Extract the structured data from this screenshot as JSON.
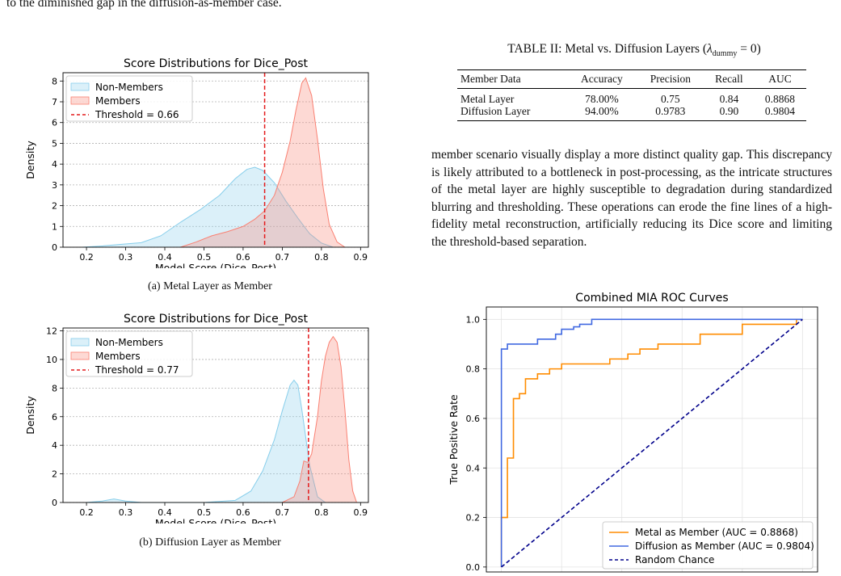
{
  "top_text": "to the diminished gap in the diffusion-as-member case.",
  "figure_a": {
    "caption": "(a) Metal Layer as Member",
    "chart": {
      "type": "area",
      "title": "Score Distributions for Dice_Post",
      "xlabel": "Model Score (Dice_Post)",
      "ylabel": "Density",
      "xlim": [
        0.14,
        0.92
      ],
      "ylim": [
        0,
        8.4
      ],
      "xticks": [
        "0.2",
        "0.3",
        "0.4",
        "0.5",
        "0.6",
        "0.7",
        "0.8",
        "0.9"
      ],
      "yticks": [
        "0",
        "1",
        "2",
        "3",
        "4",
        "5",
        "6",
        "7",
        "8"
      ],
      "grid": "y",
      "legend_position": "top-left",
      "threshold": 0.655,
      "series": [
        {
          "name": "Non-Members",
          "color": "#87ceeb",
          "x": [
            0.19,
            0.24,
            0.29,
            0.34,
            0.39,
            0.44,
            0.49,
            0.54,
            0.58,
            0.61,
            0.63,
            0.65,
            0.68,
            0.71,
            0.74,
            0.77,
            0.8,
            0.83
          ],
          "y": [
            0,
            0.06,
            0.14,
            0.22,
            0.55,
            1.2,
            1.8,
            2.5,
            3.3,
            3.75,
            3.85,
            3.7,
            3.1,
            2.2,
            1.4,
            0.65,
            0.2,
            0
          ]
        },
        {
          "name": "Members",
          "color": "#fa8072",
          "x": [
            0.44,
            0.48,
            0.52,
            0.56,
            0.6,
            0.63,
            0.655,
            0.68,
            0.7,
            0.72,
            0.735,
            0.75,
            0.76,
            0.775,
            0.79,
            0.805,
            0.82,
            0.84,
            0.86
          ],
          "y": [
            0,
            0.25,
            0.55,
            0.75,
            1.0,
            1.35,
            1.75,
            2.5,
            3.6,
            5.1,
            6.6,
            7.9,
            8.15,
            7.3,
            5.2,
            2.8,
            1.1,
            0.25,
            0
          ]
        }
      ],
      "threshold_label": "Threshold = 0.66"
    }
  },
  "figure_b": {
    "caption": "(b) Diffusion Layer as Member",
    "chart": {
      "type": "area",
      "title": "Score Distributions for Dice_Post",
      "xlabel": "Model Score (Dice_Post)",
      "ylabel": "Density",
      "xlim": [
        0.14,
        0.92
      ],
      "ylim": [
        0,
        12.2
      ],
      "xticks": [
        "0.2",
        "0.3",
        "0.4",
        "0.5",
        "0.6",
        "0.7",
        "0.8",
        "0.9"
      ],
      "yticks": [
        "0",
        "2",
        "4",
        "6",
        "8",
        "10",
        "12"
      ],
      "grid": "y",
      "legend_position": "top-left",
      "threshold": 0.767,
      "series": [
        {
          "name": "Non-Members",
          "color": "#87ceeb",
          "x": [
            0.2,
            0.24,
            0.27,
            0.3,
            0.34,
            0.4,
            0.5,
            0.58,
            0.62,
            0.65,
            0.68,
            0.7,
            0.72,
            0.73,
            0.74,
            0.75,
            0.77,
            0.79,
            0.81
          ],
          "y": [
            0,
            0.1,
            0.25,
            0.1,
            0,
            0,
            0,
            0.15,
            0.8,
            2.2,
            4.4,
            6.4,
            8.2,
            8.55,
            8.2,
            6.5,
            2.6,
            0.4,
            0
          ]
        },
        {
          "name": "Members",
          "color": "#fa8072",
          "x": [
            0.7,
            0.73,
            0.745,
            0.755,
            0.765,
            0.775,
            0.79,
            0.8,
            0.81,
            0.82,
            0.83,
            0.84,
            0.85,
            0.86,
            0.87,
            0.88,
            0.89
          ],
          "y": [
            0,
            0.4,
            1.5,
            2.9,
            2.8,
            3.4,
            6.0,
            8.5,
            10.2,
            11.2,
            11.6,
            11.2,
            9.5,
            6.5,
            3.0,
            0.8,
            0
          ]
        }
      ],
      "threshold_label": "Threshold = 0.77"
    }
  },
  "table": {
    "caption_prefix": "TABLE II: Metal vs. Diffusion Layers (",
    "caption_lambda": "λ",
    "caption_sub": "dummy",
    "caption_suffix": " = 0)",
    "headers": [
      "Member Data",
      "Accuracy",
      "Precision",
      "Recall",
      "AUC"
    ],
    "rows": [
      [
        "Metal Layer",
        "78.00%",
        "0.75",
        "0.84",
        "0.8868"
      ],
      [
        "Diffusion Layer",
        "94.00%",
        "0.9783",
        "0.90",
        "0.9804"
      ]
    ]
  },
  "paragraph": "member scenario visually display a more distinct quality gap. This discrepancy is likely attributed to a bottleneck in post-processing, as the intricate structures of the metal layer are highly susceptible to degradation during standardized blurring and thresholding. These operations can erode the fine lines of a high-fidelity metal reconstruction, artificially reducing its Dice score and limiting the threshold-based separation.",
  "roc": {
    "chart": {
      "type": "line",
      "title": "Combined MIA ROC Curves",
      "xlabel": "",
      "ylabel": "True Positive Rate",
      "xlim": [
        -0.05,
        1.05
      ],
      "ylim": [
        -0.02,
        1.05
      ],
      "yticks": [
        "0.0",
        "0.2",
        "0.4",
        "0.6",
        "0.8",
        "1.0"
      ],
      "grid": "both",
      "legend_position": "bottom-right",
      "series": [
        {
          "name": "Metal as Member (AUC = 0.8868)",
          "color": "#ff8c00",
          "style": "step",
          "x": [
            0,
            0,
            0.02,
            0.02,
            0.04,
            0.04,
            0.06,
            0.06,
            0.08,
            0.08,
            0.1,
            0.1,
            0.12,
            0.12,
            0.16,
            0.16,
            0.18,
            0.18,
            0.2,
            0.2,
            0.22,
            0.22,
            0.24,
            0.24,
            0.36,
            0.36,
            0.42,
            0.42,
            0.44,
            0.44,
            0.46,
            0.46,
            0.48,
            0.48,
            0.5,
            0.5,
            0.52,
            0.52,
            0.56,
            0.56,
            0.66,
            0.66,
            0.8,
            0.8,
            0.98,
            0.98,
            1.0
          ],
          "y": [
            0,
            0.2,
            0.2,
            0.44,
            0.44,
            0.68,
            0.68,
            0.7,
            0.7,
            0.76,
            0.76,
            0.76,
            0.76,
            0.78,
            0.78,
            0.8,
            0.8,
            0.8,
            0.8,
            0.82,
            0.82,
            0.82,
            0.82,
            0.82,
            0.82,
            0.84,
            0.84,
            0.86,
            0.86,
            0.86,
            0.86,
            0.88,
            0.88,
            0.88,
            0.88,
            0.88,
            0.88,
            0.9,
            0.9,
            0.9,
            0.9,
            0.94,
            0.94,
            0.98,
            0.98,
            1.0,
            1.0
          ]
        },
        {
          "name": "Diffusion as Member (AUC = 0.9804)",
          "color": "#4169e1",
          "style": "step",
          "x": [
            0,
            0,
            0.02,
            0.02,
            0.06,
            0.06,
            0.12,
            0.12,
            0.18,
            0.18,
            0.2,
            0.2,
            0.24,
            0.24,
            0.26,
            0.26,
            0.3,
            0.3,
            1.0
          ],
          "y": [
            0,
            0.88,
            0.88,
            0.9,
            0.9,
            0.9,
            0.9,
            0.92,
            0.92,
            0.94,
            0.94,
            0.96,
            0.96,
            0.97,
            0.97,
            0.98,
            0.98,
            1.0,
            1.0
          ]
        },
        {
          "name": "Random Chance",
          "color": "#00008b",
          "style": "dashed",
          "x": [
            0,
            1
          ],
          "y": [
            0,
            1
          ]
        }
      ]
    }
  }
}
